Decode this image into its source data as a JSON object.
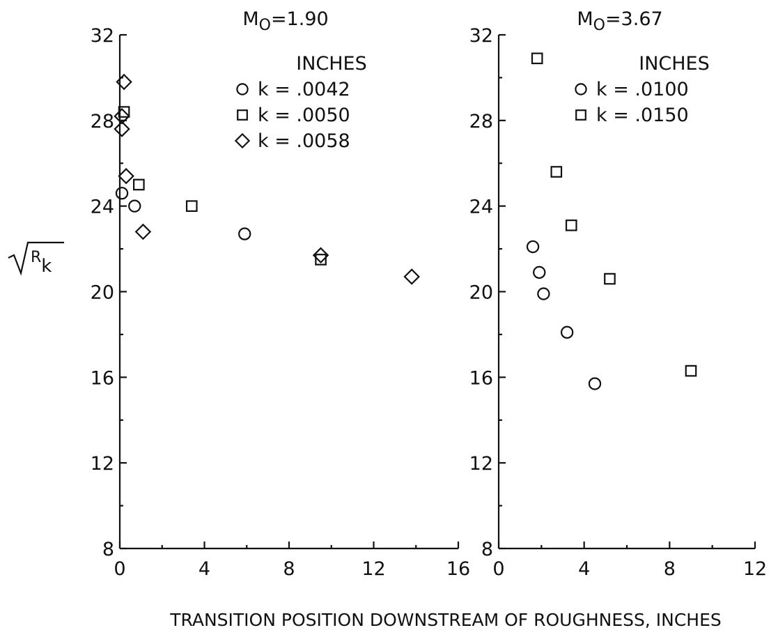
{
  "figure": {
    "xlabel": "TRANSITION POSITION DOWNSTREAM OF ROUGHNESS, INCHES",
    "ylabel": "√Rk"
  },
  "chart_data": [
    {
      "type": "scatter",
      "title": "M0=1.90",
      "title_main": "M",
      "title_sub": "O",
      "title_value": "=1.90",
      "legend_title": "INCHES",
      "legend_position": "top-right",
      "xlim": [
        0,
        16
      ],
      "ylim": [
        8,
        32
      ],
      "xticks": [
        0,
        4,
        8,
        12,
        16
      ],
      "yticks": [
        8,
        12,
        16,
        20,
        24,
        28,
        32
      ],
      "grid": false,
      "series": [
        {
          "name": "k = .0042",
          "marker": "circle",
          "points": [
            [
              0.1,
              24.6
            ],
            [
              0.7,
              24.0
            ],
            [
              5.9,
              22.7
            ]
          ]
        },
        {
          "name": "k = .0050",
          "marker": "square",
          "points": [
            [
              0.2,
              28.4
            ],
            [
              0.9,
              25.0
            ],
            [
              3.4,
              24.0
            ],
            [
              9.5,
              21.5
            ]
          ]
        },
        {
          "name": "k = .0058",
          "marker": "diamond",
          "points": [
            [
              0.2,
              29.8
            ],
            [
              0.1,
              28.2
            ],
            [
              0.1,
              27.6
            ],
            [
              0.3,
              25.4
            ],
            [
              1.1,
              22.8
            ],
            [
              9.5,
              21.7
            ],
            [
              13.8,
              20.7
            ]
          ]
        }
      ]
    },
    {
      "type": "scatter",
      "title": "M0=3.67",
      "title_main": "M",
      "title_sub": "O",
      "title_value": "=3.67",
      "legend_title": "INCHES",
      "legend_position": "top-right",
      "xlim": [
        0,
        12
      ],
      "ylim": [
        8,
        32
      ],
      "xticks": [
        0,
        4,
        8,
        12
      ],
      "yticks": [
        8,
        12,
        16,
        20,
        24,
        28,
        32
      ],
      "grid": false,
      "series": [
        {
          "name": "k = .0100",
          "marker": "circle",
          "points": [
            [
              1.6,
              22.1
            ],
            [
              1.9,
              20.9
            ],
            [
              2.1,
              19.9
            ],
            [
              3.2,
              18.1
            ],
            [
              4.5,
              15.7
            ]
          ]
        },
        {
          "name": "k = .0150",
          "marker": "square",
          "points": [
            [
              1.8,
              30.9
            ],
            [
              2.7,
              25.6
            ],
            [
              3.4,
              23.1
            ],
            [
              5.2,
              20.6
            ],
            [
              9.0,
              16.3
            ]
          ]
        }
      ]
    }
  ]
}
